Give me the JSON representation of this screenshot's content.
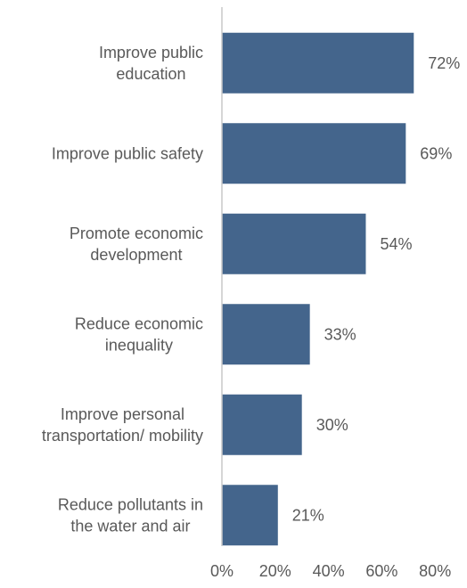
{
  "chart_data": {
    "type": "bar",
    "orientation": "horizontal",
    "categories": [
      [
        "Improve public",
        "education"
      ],
      [
        "Improve public safety"
      ],
      [
        "Promote economic",
        "development"
      ],
      [
        "Reduce economic",
        "inequality"
      ],
      [
        "Improve personal",
        "transportation/ mobility"
      ],
      [
        "Reduce pollutants in",
        "the water and air"
      ]
    ],
    "values": [
      72,
      69,
      54,
      33,
      30,
      21
    ],
    "value_labels": [
      "72%",
      "69%",
      "54%",
      "33%",
      "30%",
      "21%"
    ],
    "xlim": [
      0,
      80
    ],
    "x_ticks": [
      0,
      20,
      40,
      60,
      80
    ],
    "x_tick_labels": [
      "0%",
      "20%",
      "40%",
      "60%",
      "80%"
    ],
    "title": "",
    "xlabel": "",
    "ylabel": "",
    "grid": false,
    "bar_color": "#44658c",
    "axis_color": "#c8c8c8",
    "text_color": "#595959"
  }
}
